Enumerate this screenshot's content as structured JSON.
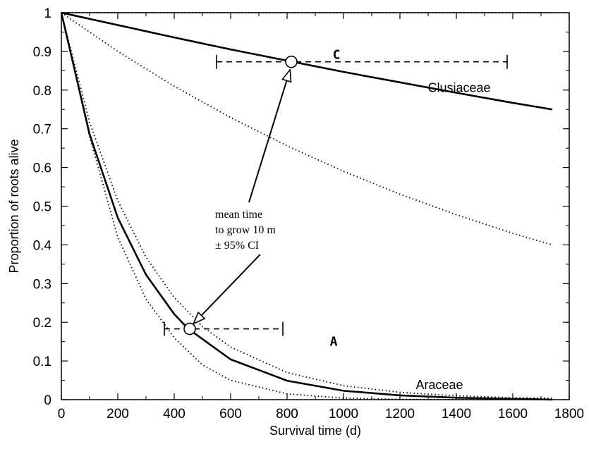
{
  "chart_data": {
    "type": "line",
    "title": "",
    "xlabel": "Survival time (d)",
    "ylabel": "Proportion of roots alive",
    "xlim": [
      0,
      1800
    ],
    "ylim": [
      0,
      1
    ],
    "xticks": [
      0,
      200,
      400,
      600,
      800,
      1000,
      1200,
      1400,
      1600,
      1800
    ],
    "yticks": [
      0,
      0.1,
      0.2,
      0.3,
      0.4,
      0.5,
      0.6,
      0.7,
      0.8,
      0.9,
      1
    ],
    "x_tick_labels": [
      "0",
      "200",
      "400",
      "600",
      "800",
      "1000",
      "1200",
      "1400",
      "1600",
      "1800"
    ],
    "y_tick_labels": [
      "0",
      "0.1",
      "0.2",
      "0.3",
      "0.4",
      "0.5",
      "0.6",
      "0.7",
      "0.8",
      "0.9",
      "1"
    ],
    "grid": false,
    "series": [
      {
        "name": "Clusiaceae",
        "style": "solid",
        "x": [
          0,
          200,
          400,
          600,
          800,
          1000,
          1200,
          1400,
          1600,
          1740
        ],
        "y": [
          1.0,
          0.968,
          0.936,
          0.905,
          0.876,
          0.847,
          0.82,
          0.793,
          0.767,
          0.75
        ]
      },
      {
        "name": "Araceae",
        "style": "solid",
        "x": [
          0,
          100,
          200,
          300,
          400,
          450,
          600,
          800,
          1000,
          1200,
          1400,
          1600,
          1740
        ],
        "y": [
          1.0,
          0.686,
          0.47,
          0.323,
          0.221,
          0.183,
          0.104,
          0.049,
          0.023,
          0.011,
          0.005,
          0.002,
          0.0
        ]
      },
      {
        "style": "dotted",
        "x": [
          0,
          1740
        ],
        "y": [
          1.0,
          1.0
        ]
      },
      {
        "style": "dotted",
        "x": [
          0,
          200,
          400,
          600,
          800,
          1000,
          1200,
          1400,
          1600,
          1740
        ],
        "y": [
          1.0,
          0.9,
          0.81,
          0.729,
          0.656,
          0.59,
          0.531,
          0.478,
          0.43,
          0.4
        ]
      },
      {
        "style": "dotted",
        "x": [
          0,
          100,
          200,
          300,
          400,
          500,
          600,
          800,
          1000,
          1200,
          1400,
          1600,
          1740
        ],
        "y": [
          1.0,
          0.717,
          0.514,
          0.368,
          0.264,
          0.189,
          0.136,
          0.07,
          0.036,
          0.019,
          0.01,
          0.005,
          0.004
        ]
      },
      {
        "style": "dotted",
        "x": [
          0,
          100,
          200,
          300,
          400,
          500,
          600,
          800,
          1000,
          1200,
          1400,
          1600,
          1740
        ],
        "y": [
          1.0,
          0.68,
          0.42,
          0.26,
          0.16,
          0.09,
          0.05,
          0.015,
          0.004,
          0.001,
          0.0,
          0.0,
          0.0
        ]
      }
    ],
    "markers": [
      {
        "letter": "C",
        "x": 815,
        "y": 0.873,
        "ci_low": 550,
        "ci_high": 1580
      },
      {
        "letter": "A",
        "x": 455,
        "y": 0.183,
        "ci_low": 365,
        "ci_high": 785
      }
    ],
    "series_labels": [
      {
        "text": "Clusiaceae",
        "x": 1410,
        "y": 0.795
      },
      {
        "text": "Araceae",
        "x": 1340,
        "y": 0.027
      }
    ],
    "annotation": {
      "lines": [
        "mean time",
        "to grow 10 m",
        "± 95% CI"
      ],
      "x": 545,
      "y": 0.47
    }
  }
}
